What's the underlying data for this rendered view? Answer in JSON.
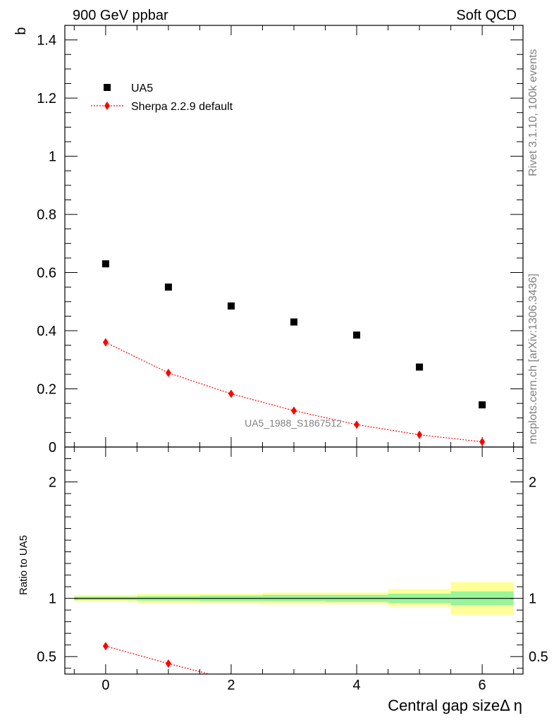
{
  "header": {
    "left_title": "900 GeV ppbar",
    "right_title": "Soft QCD"
  },
  "side_labels": {
    "rivet": "Rivet 3.1.10,  100k events",
    "mcplots": "mcplots.cern.ch [arXiv:1306.3436]"
  },
  "watermark": "UA5_1988_S1867512",
  "colors": {
    "data": "#000000",
    "mc": "#ff0000",
    "band_inner": "#99f599",
    "band_outer": "#ffff99"
  },
  "chart_data": [
    {
      "type": "scatter",
      "ylabel": "b",
      "xlim": [
        -0.65,
        6.65
      ],
      "ylim": [
        0,
        1.45
      ],
      "y_ticks": [
        0,
        0.2,
        0.4,
        0.6,
        0.8,
        1,
        1.2,
        1.4
      ],
      "y_tick_labels": [
        "0",
        "0.2",
        "0.4",
        "0.6",
        "0.8",
        "1",
        "1.2",
        "1.4"
      ],
      "legend_position": "top-left",
      "series": [
        {
          "name": "UA5",
          "marker": "square",
          "x": [
            0,
            1,
            2,
            3,
            4,
            5,
            6
          ],
          "y": [
            0.63,
            0.55,
            0.485,
            0.43,
            0.385,
            0.275,
            0.145
          ]
        },
        {
          "name": "Sherpa 2.2.9 default",
          "marker": "diamond",
          "line": "dotted",
          "x": [
            0,
            1,
            2,
            3,
            4,
            5,
            6
          ],
          "y": [
            0.36,
            0.255,
            0.183,
            0.125,
            0.077,
            0.042,
            0.018
          ]
        }
      ]
    },
    {
      "type": "line",
      "ylabel": "Ratio to UA5",
      "xlabel": "Central gap sizeΔ η",
      "xlim": [
        -0.65,
        6.65
      ],
      "ylim": [
        0.35,
        2.3
      ],
      "x_ticks": [
        0,
        2,
        4,
        6
      ],
      "x_tick_labels": [
        "0",
        "2",
        "4",
        "6"
      ],
      "y_ticks": [
        0.5,
        1,
        2
      ],
      "y_tick_labels": [
        "0.5",
        "1",
        "2"
      ],
      "reference": 1.0,
      "uncertainty_bands": {
        "bins": [
          [
            -0.5,
            0.5
          ],
          [
            0.5,
            1.5
          ],
          [
            1.5,
            2.5
          ],
          [
            2.5,
            3.5
          ],
          [
            3.5,
            4.5
          ],
          [
            4.5,
            5.5
          ],
          [
            5.5,
            6.5
          ]
        ],
        "inner_low": [
          0.985,
          0.98,
          0.975,
          0.975,
          0.97,
          0.96,
          0.94
        ],
        "inner_high": [
          1.015,
          1.02,
          1.025,
          1.03,
          1.03,
          1.04,
          1.06
        ],
        "outer_low": [
          0.97,
          0.96,
          0.96,
          0.95,
          0.95,
          0.93,
          0.86
        ],
        "outer_high": [
          1.03,
          1.04,
          1.04,
          1.05,
          1.05,
          1.08,
          1.14
        ]
      },
      "series": [
        {
          "name": "Sherpa 2.2.9 default",
          "marker": "diamond",
          "line": "dotted",
          "x": [
            0,
            1,
            1.65
          ],
          "y": [
            0.59,
            0.44,
            0.35
          ]
        }
      ]
    }
  ]
}
